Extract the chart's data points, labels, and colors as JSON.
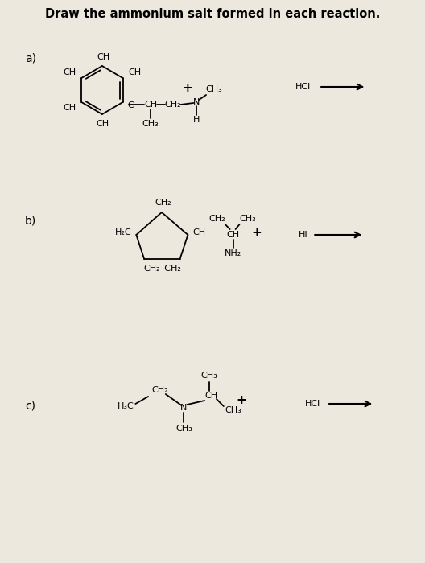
{
  "title": "Draw the ammonium salt formed in each reaction.",
  "bg_color": "#ede8de",
  "text_color": "#000000",
  "title_fontsize": 10.5,
  "label_fontsize": 10,
  "chem_fontsize": 8,
  "reagents_a": "HCl",
  "reagents_b": "HI",
  "reagents_c": "HCl",
  "fig_width": 5.28,
  "fig_height": 7.0,
  "dpi": 100
}
